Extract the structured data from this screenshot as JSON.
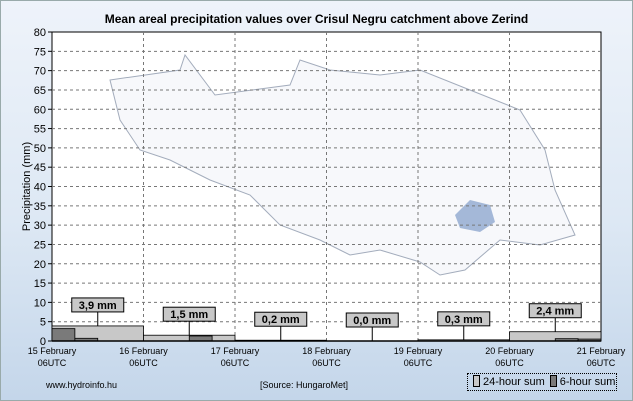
{
  "chart_data": {
    "type": "bar",
    "title": "Mean areal precipitation values over Crisul Negru catchment above Zerind",
    "ylabel": "Precipitation (mm)",
    "xlabel": "",
    "ylim": [
      0,
      80
    ],
    "yticks": [
      0,
      5,
      10,
      15,
      20,
      25,
      30,
      35,
      40,
      45,
      50,
      55,
      60,
      65,
      70,
      75,
      80
    ],
    "grid": true,
    "x_ticks": [
      {
        "day": "15 February",
        "time": "06UTC"
      },
      {
        "day": "16 February",
        "time": "06UTC"
      },
      {
        "day": "17 February",
        "time": "06UTC"
      },
      {
        "day": "18 February",
        "time": "06UTC"
      },
      {
        "day": "19 February",
        "time": "06UTC"
      },
      {
        "day": "20 February",
        "time": "06UTC"
      },
      {
        "day": "21 February",
        "time": "06UTC"
      }
    ],
    "series": [
      {
        "name": "24-hour sum",
        "color": "#c8c8c8",
        "values": [
          3.9,
          1.5,
          0.2,
          0.0,
          0.3,
          2.4
        ],
        "labels": [
          "3,9 mm",
          "1,5 mm",
          "0,2 mm",
          "0,0 mm",
          "0,3 mm",
          "2,4 mm"
        ]
      },
      {
        "name": "6-hour sum",
        "color": "#7a7a7a",
        "values": [
          3.2,
          0.7,
          0,
          0,
          0,
          0,
          1.3,
          0,
          0,
          0,
          0,
          0,
          0,
          0,
          0,
          0,
          0,
          0,
          0,
          0,
          0,
          0,
          0.6,
          0.5
        ]
      }
    ],
    "legend": "bottom-right"
  },
  "footer": {
    "website": "www.hydroinfo.hu",
    "source": "[Source: HungaroMet]"
  }
}
